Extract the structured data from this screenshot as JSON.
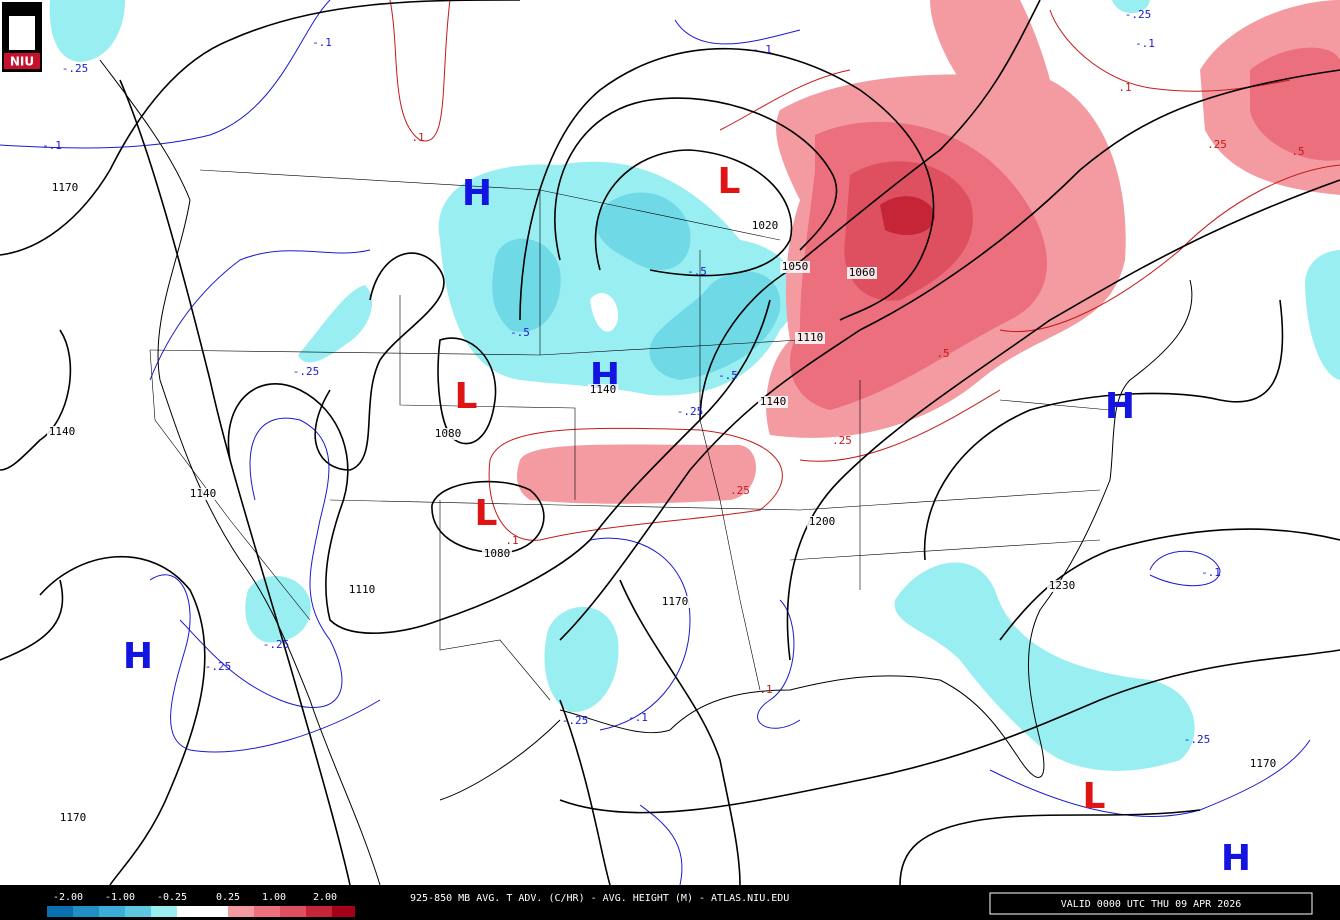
{
  "logo": "NIU",
  "legend": {
    "labels": [
      "-2.00",
      "-1.00",
      "-0.25",
      "0.25",
      "1.00",
      "2.00"
    ]
  },
  "footer": {
    "caption": "925-850 MB AVG. T ADV. (C/HR) - AVG. HEIGHT (M) - ATLAS.NIU.EDU",
    "valid": "VALID 0000 UTC THU 09 APR 2026"
  },
  "map": {
    "pressure_centers": [
      "H",
      "L",
      "H",
      "L",
      "L",
      "H",
      "H",
      "L",
      "H"
    ],
    "height_labels": [
      "1170",
      "1140",
      "1140",
      "1170",
      "1080",
      "1080",
      "1020",
      "1050",
      "1060",
      "1110",
      "1140",
      "1140",
      "1200",
      "1110",
      "1170",
      "1230",
      "1170"
    ],
    "advection_labels": [
      "-.1",
      "-.25",
      "-.1",
      "-.1",
      "-.25",
      "-.1",
      ".1",
      ".1",
      ".25",
      ".5",
      "-.5",
      "-.5",
      "-.25",
      "-.5",
      "-.25",
      ".5",
      ".25",
      ".25",
      ".1",
      "-.25",
      "-.25",
      "-.25",
      "-.1",
      "-.25",
      "-.1",
      ".1"
    ]
  }
}
